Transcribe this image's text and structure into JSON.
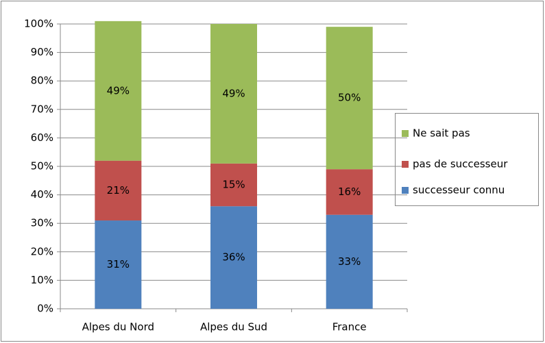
{
  "chart_data": {
    "type": "stacked-bar",
    "categories": [
      "Alpes du Nord",
      "Alpes du Sud",
      "France"
    ],
    "series": [
      {
        "name": "successeur connu",
        "color": "#4f81bd",
        "values": [
          31,
          36,
          33
        ],
        "value_labels": [
          "31%",
          "36%",
          "33%"
        ]
      },
      {
        "name": "pas de successeur",
        "color": "#c0504d",
        "values": [
          21,
          15,
          16
        ],
        "value_labels": [
          "21%",
          "15%",
          "16%"
        ]
      },
      {
        "name": "Ne sait pas",
        "color": "#9bbb59",
        "values": [
          49,
          49,
          50
        ],
        "value_labels": [
          "49%",
          "49%",
          "50%"
        ]
      }
    ],
    "ylim": [
      0,
      100
    ],
    "yticks": [
      {
        "value": 0,
        "label": "0%"
      },
      {
        "value": 10,
        "label": "10%"
      },
      {
        "value": 20,
        "label": "20%"
      },
      {
        "value": 30,
        "label": "30%"
      },
      {
        "value": 40,
        "label": "40%"
      },
      {
        "value": 50,
        "label": "50%"
      },
      {
        "value": 60,
        "label": "60%"
      },
      {
        "value": 70,
        "label": "70%"
      },
      {
        "value": 80,
        "label": "80%"
      },
      {
        "value": 90,
        "label": "90%"
      },
      {
        "value": 100,
        "label": "100%"
      }
    ],
    "grid": true,
    "legend": "right"
  }
}
